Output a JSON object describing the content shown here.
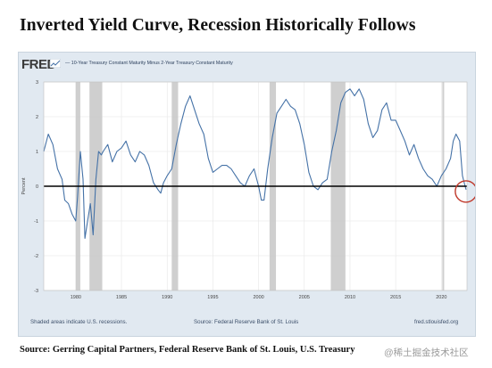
{
  "header": {
    "title": "Inverted Yield Curve, Recession Historically Follows"
  },
  "fred": {
    "logo": "FRED",
    "legend_label": "— 10-Year Treasury Constant Maturity Minus 2-Year Treasury Constant Maturity",
    "recession_note": "Shaded areas indicate U.S. recessions.",
    "source_note": "Source: Federal Reserve Bank of St. Louis",
    "site": "fred.stlouisfed.org"
  },
  "footer": {
    "source": "Source: Gerring Capital Partners, Federal Reserve Bank of St. Louis, U.S. Treasury",
    "watermark": "@稀土掘金技术社区"
  },
  "colors": {
    "series": "#4572a7",
    "recession": "#c7c7c7",
    "zero_line": "#000000",
    "highlight_circle": "#c0392b",
    "plot_bg": "#ffffff",
    "frame_bg": "#e1e9f1"
  },
  "chart_data": {
    "type": "line",
    "title": "",
    "xlabel": "",
    "ylabel": "Percent",
    "xlim": [
      1976.5,
      2022.8
    ],
    "ylim": [
      -3,
      3
    ],
    "x_ticks": [
      1980,
      1985,
      1990,
      1995,
      2000,
      2005,
      2010,
      2015,
      2020
    ],
    "x_tick_labels": [
      "1980",
      "1985",
      "1990",
      "1995",
      "2000",
      "2005",
      "2010",
      "2015",
      "2020"
    ],
    "y_ticks": [
      -3,
      -2,
      -1,
      0,
      1,
      2,
      3
    ],
    "y_tick_labels": [
      "-3",
      "-2",
      "-1",
      "0",
      "1",
      "2",
      "3"
    ],
    "reference_line": 0,
    "grid": true,
    "recessions": [
      [
        1980.0,
        1980.5
      ],
      [
        1981.5,
        1982.9
      ],
      [
        1990.5,
        1991.2
      ],
      [
        2001.2,
        2001.9
      ],
      [
        2007.9,
        2009.5
      ],
      [
        2020.1,
        2020.3
      ]
    ],
    "highlight": {
      "x": 2022.3,
      "y": -0.1,
      "shape": "circle"
    },
    "series": [
      {
        "x": [
          1976.5,
          1977,
          1977.5,
          1978,
          1978.5,
          1978.8,
          1979.2,
          1979.6,
          1980,
          1980.2,
          1980.5,
          1980.8,
          1981,
          1981.3,
          1981.6,
          1981.9,
          1982.2,
          1982.5,
          1982.8,
          1983,
          1983.5,
          1984,
          1984.5,
          1985,
          1985.5,
          1986,
          1986.5,
          1987,
          1987.5,
          1988,
          1988.5,
          1989,
          1989.3,
          1989.6,
          1990,
          1990.5,
          1991,
          1991.5,
          1992,
          1992.5,
          1993,
          1993.5,
          1994,
          1994.5,
          1995,
          1995.5,
          1996,
          1996.5,
          1997,
          1997.5,
          1998,
          1998.5,
          1999,
          1999.5,
          2000,
          2000.3,
          2000.6,
          2001,
          2001.5,
          2002,
          2002.5,
          2003,
          2003.5,
          2004,
          2004.5,
          2005,
          2005.5,
          2006,
          2006.5,
          2007,
          2007.5,
          2008,
          2008.5,
          2009,
          2009.5,
          2010,
          2010.5,
          2011,
          2011.5,
          2012,
          2012.5,
          2013,
          2013.5,
          2014,
          2014.5,
          2015,
          2015.5,
          2016,
          2016.5,
          2017,
          2017.5,
          2018,
          2018.5,
          2019,
          2019.5,
          2020,
          2020.5,
          2021,
          2021.3,
          2021.6,
          2022,
          2022.3,
          2022.5,
          2022.7
        ],
        "y": [
          1.0,
          1.5,
          1.2,
          0.5,
          0.2,
          -0.4,
          -0.5,
          -0.8,
          -1.0,
          -0.3,
          1.0,
          0.2,
          -1.5,
          -1.0,
          -0.5,
          -1.4,
          0.2,
          1.0,
          0.9,
          1.0,
          1.2,
          0.7,
          1.0,
          1.1,
          1.3,
          0.9,
          0.7,
          1.0,
          0.9,
          0.6,
          0.1,
          -0.1,
          -0.2,
          0.1,
          0.3,
          0.5,
          1.2,
          1.8,
          2.3,
          2.6,
          2.2,
          1.8,
          1.5,
          0.8,
          0.4,
          0.5,
          0.6,
          0.6,
          0.5,
          0.3,
          0.1,
          0.0,
          0.3,
          0.5,
          0.0,
          -0.4,
          -0.4,
          0.5,
          1.4,
          2.1,
          2.3,
          2.5,
          2.3,
          2.2,
          1.8,
          1.2,
          0.4,
          0.0,
          -0.1,
          0.1,
          0.2,
          1.0,
          1.6,
          2.4,
          2.7,
          2.8,
          2.6,
          2.8,
          2.5,
          1.8,
          1.4,
          1.6,
          2.2,
          2.4,
          1.9,
          1.9,
          1.6,
          1.3,
          0.9,
          1.2,
          0.8,
          0.5,
          0.3,
          0.2,
          0.0,
          0.3,
          0.5,
          0.8,
          1.3,
          1.5,
          1.3,
          0.3,
          0.1,
          -0.1
        ]
      }
    ]
  }
}
